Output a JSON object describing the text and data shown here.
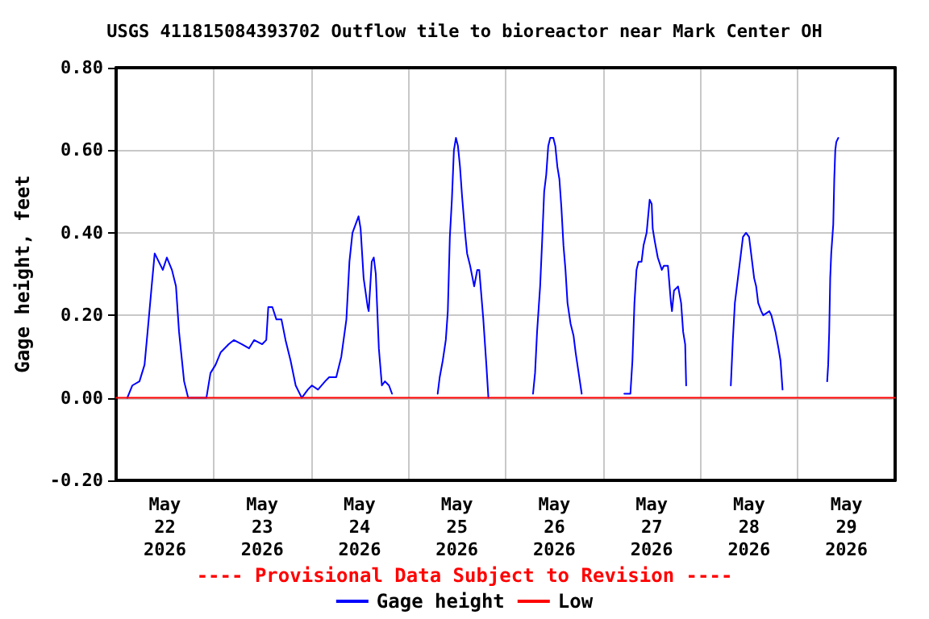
{
  "chart_data": {
    "type": "line",
    "title": "USGS 411815084393702 Outflow tile to bioreactor near Mark Center OH",
    "ylabel": "Gage height, feet",
    "annotations": [
      "---- Provisional Data Subject to Revision ----"
    ],
    "xlim": [
      "2026-05-22",
      "2026-05-30"
    ],
    "xticks": [
      {
        "value": "2026-05-22T12:00",
        "label": "May\n22\n2026"
      },
      {
        "value": "2026-05-23",
        "label": null
      },
      {
        "value": "2026-05-23T12:00",
        "label": "May\n23\n2026"
      },
      {
        "value": "2026-05-24",
        "label": null
      },
      {
        "value": "2026-05-24T12:00",
        "label": "May\n24\n2026"
      },
      {
        "value": "2026-05-25",
        "label": null
      },
      {
        "value": "2026-05-25T12:00",
        "label": "May\n25\n2026"
      },
      {
        "value": "2026-05-26",
        "label": null
      },
      {
        "value": "2026-05-26T12:00",
        "label": "May\n26\n2026"
      },
      {
        "value": "2026-05-27",
        "label": null
      },
      {
        "value": "2026-05-27T12:00",
        "label": "May\n27\n2026"
      },
      {
        "value": "2026-05-28",
        "label": null
      },
      {
        "value": "2026-05-28T12:00",
        "label": "May\n28\n2026"
      },
      {
        "value": "2026-05-29",
        "label": null
      },
      {
        "value": "2026-05-29T12:00",
        "label": "May\n29\n2026"
      }
    ],
    "ylim": [
      -0.2,
      0.8
    ],
    "yticks": [
      {
        "value": -0.2,
        "label": "-0.20"
      },
      {
        "value": 0,
        "label": "0.00"
      },
      {
        "value": 0.2,
        "label": "0.20"
      },
      {
        "value": 0.4,
        "label": "0.40"
      },
      {
        "value": 0.6,
        "label": "0.60"
      },
      {
        "value": 0.8,
        "label": "0.80"
      }
    ],
    "grid": true,
    "legend": "bottom",
    "marker": "none",
    "line_style": "solid",
    "series": [
      {
        "name": "Gage height",
        "color": "#0000ff",
        "x": [
          "2026-05-22T02:45",
          "2026-05-22T04:00",
          "2026-05-22T05:45",
          "2026-05-22T07:00",
          "2026-05-22T07:45",
          "2026-05-22T08:45",
          "2026-05-22T09:30",
          "2026-05-22T10:30",
          "2026-05-22T11:30",
          "2026-05-22T12:30",
          "2026-05-22T13:45",
          "2026-05-22T14:45",
          "2026-05-22T15:30",
          "2026-05-22T16:45",
          "2026-05-22T17:45",
          "2026-05-22T20:00",
          "2026-05-22T22:15",
          "2026-05-22T23:15",
          "2026-05-23T00:30",
          "2026-05-23T01:45",
          "2026-05-23T03:45",
          "2026-05-23T05:00",
          "2026-05-23T07:00",
          "2026-05-23T08:45",
          "2026-05-23T10:00",
          "2026-05-23T12:00",
          "2026-05-23T13:00",
          "2026-05-23T13:30",
          "2026-05-23T14:30",
          "2026-05-23T15:30",
          "2026-05-23T16:45",
          "2026-05-23T17:45",
          "2026-05-23T19:00",
          "2026-05-23T20:15",
          "2026-05-23T21:45",
          "2026-05-23T23:15",
          "2026-05-24T00:15",
          "2026-05-24T01:45",
          "2026-05-24T03:30",
          "2026-05-24T04:30",
          "2026-05-24T06:15",
          "2026-05-24T07:30",
          "2026-05-24T08:45",
          "2026-05-24T09:30",
          "2026-05-24T10:15",
          "2026-05-24T11:00",
          "2026-05-24T11:45",
          "2026-05-24T12:15",
          "2026-05-24T13:00",
          "2026-05-24T14:00",
          "2026-05-24T14:15",
          "2026-05-24T15:00",
          "2026-05-24T15:30",
          "2026-05-24T16:00",
          "2026-05-24T16:45",
          "2026-05-24T17:30",
          "2026-05-24T18:15",
          "2026-05-24T19:15",
          "2026-05-24T20:00",
          "2026-05-25T03:00",
          "2026-05-25T07:15",
          "2026-05-25T07:45",
          "2026-05-25T08:30",
          "2026-05-25T09:15",
          "2026-05-25T09:45",
          "2026-05-25T10:15",
          "2026-05-25T10:45",
          "2026-05-25T11:15",
          "2026-05-25T11:45",
          "2026-05-25T12:15",
          "2026-05-25T12:45",
          "2026-05-25T13:15",
          "2026-05-25T14:00",
          "2026-05-25T14:30",
          "2026-05-25T15:15",
          "2026-05-25T16:15",
          "2026-05-25T17:00",
          "2026-05-25T17:30",
          "2026-05-25T18:00",
          "2026-05-25T18:30",
          "2026-05-25T19:15",
          "2026-05-25T19:45",
          "2026-05-26T02:00",
          "2026-05-26T06:45",
          "2026-05-26T07:15",
          "2026-05-26T07:45",
          "2026-05-26T08:30",
          "2026-05-26T09:00",
          "2026-05-26T09:30",
          "2026-05-26T10:00",
          "2026-05-26T10:30",
          "2026-05-26T11:00",
          "2026-05-26T11:45",
          "2026-05-26T12:15",
          "2026-05-26T12:45",
          "2026-05-26T13:15",
          "2026-05-26T13:45",
          "2026-05-26T14:15",
          "2026-05-26T14:45",
          "2026-05-26T15:15",
          "2026-05-26T16:00",
          "2026-05-26T16:45",
          "2026-05-26T17:15",
          "2026-05-26T18:00",
          "2026-05-26T18:45",
          "2026-05-27T02:00",
          "2026-05-27T05:15",
          "2026-05-27T06:45",
          "2026-05-27T07:15",
          "2026-05-27T07:45",
          "2026-05-27T08:15",
          "2026-05-27T08:45",
          "2026-05-27T09:30",
          "2026-05-27T10:00",
          "2026-05-27T10:45",
          "2026-05-27T11:30",
          "2026-05-27T12:00",
          "2026-05-27T12:15",
          "2026-05-27T12:45",
          "2026-05-27T13:30",
          "2026-05-27T14:30",
          "2026-05-27T15:00",
          "2026-05-27T15:15",
          "2026-05-27T16:00",
          "2026-05-27T16:45",
          "2026-05-27T17:00",
          "2026-05-27T17:30",
          "2026-05-27T18:30",
          "2026-05-27T19:15",
          "2026-05-27T19:45",
          "2026-05-27T20:15",
          "2026-05-27T20:30",
          "2026-05-28T02:00",
          "2026-05-28T07:30",
          "2026-05-28T08:00",
          "2026-05-28T08:30",
          "2026-05-28T09:00",
          "2026-05-28T09:30",
          "2026-05-28T10:00",
          "2026-05-28T10:30",
          "2026-05-28T11:15",
          "2026-05-28T12:00",
          "2026-05-28T12:15",
          "2026-05-28T12:45",
          "2026-05-28T13:15",
          "2026-05-28T13:45",
          "2026-05-28T14:15",
          "2026-05-28T15:00",
          "2026-05-28T15:30",
          "2026-05-28T17:00",
          "2026-05-28T17:30",
          "2026-05-28T18:00",
          "2026-05-28T18:30",
          "2026-05-28T19:15",
          "2026-05-28T19:45",
          "2026-05-28T20:15",
          "2026-05-29T02:00",
          "2026-05-29T07:15",
          "2026-05-29T07:30",
          "2026-05-29T07:45",
          "2026-05-29T08:00",
          "2026-05-29T08:15",
          "2026-05-29T08:45",
          "2026-05-29T09:00",
          "2026-05-29T09:15",
          "2026-05-29T09:30",
          "2026-05-29T10:00"
        ],
        "values": [
          0.0,
          0.03,
          0.04,
          0.08,
          0.16,
          0.27,
          0.35,
          0.33,
          0.31,
          0.34,
          0.31,
          0.27,
          0.16,
          0.04,
          0.0,
          0.0,
          0.0,
          0.06,
          0.08,
          0.11,
          0.13,
          0.14,
          0.13,
          0.12,
          0.14,
          0.13,
          0.14,
          0.22,
          0.22,
          0.19,
          0.19,
          0.14,
          0.09,
          0.03,
          0.0,
          0.02,
          0.03,
          0.02,
          0.04,
          0.05,
          0.05,
          0.1,
          0.19,
          0.33,
          0.4,
          0.42,
          0.44,
          0.41,
          0.29,
          0.22,
          0.21,
          0.33,
          0.34,
          0.3,
          0.12,
          0.03,
          0.04,
          0.03,
          0.01,
          null,
          0.01,
          0.05,
          0.09,
          0.14,
          0.21,
          0.39,
          0.48,
          0.6,
          0.63,
          0.61,
          0.56,
          0.49,
          0.4,
          0.35,
          0.32,
          0.27,
          0.31,
          0.31,
          0.25,
          0.19,
          0.08,
          0.0,
          null,
          0.01,
          0.06,
          0.16,
          0.27,
          0.38,
          0.5,
          0.54,
          0.61,
          0.63,
          0.63,
          0.61,
          0.56,
          0.53,
          0.46,
          0.37,
          0.31,
          0.23,
          0.18,
          0.15,
          0.11,
          0.06,
          0.01,
          null,
          0.01,
          0.01,
          0.09,
          0.23,
          0.31,
          0.33,
          0.33,
          0.37,
          0.4,
          0.48,
          0.47,
          0.41,
          0.38,
          0.34,
          0.31,
          0.32,
          0.32,
          0.32,
          0.23,
          0.21,
          0.26,
          0.27,
          0.23,
          0.16,
          0.13,
          0.03,
          null,
          0.03,
          0.14,
          0.23,
          0.27,
          0.31,
          0.35,
          0.39,
          0.4,
          0.39,
          0.37,
          0.33,
          0.29,
          0.27,
          0.23,
          0.21,
          0.2,
          0.21,
          0.2,
          0.18,
          0.16,
          0.12,
          0.09,
          0.02,
          null,
          0.04,
          0.08,
          0.16,
          0.29,
          0.35,
          0.42,
          0.53,
          0.6,
          0.62,
          0.63
        ]
      },
      {
        "name": "Low",
        "color": "#ff0000",
        "x": [
          "2026-05-22",
          "2026-05-30"
        ],
        "values": [
          0,
          0
        ]
      }
    ]
  }
}
